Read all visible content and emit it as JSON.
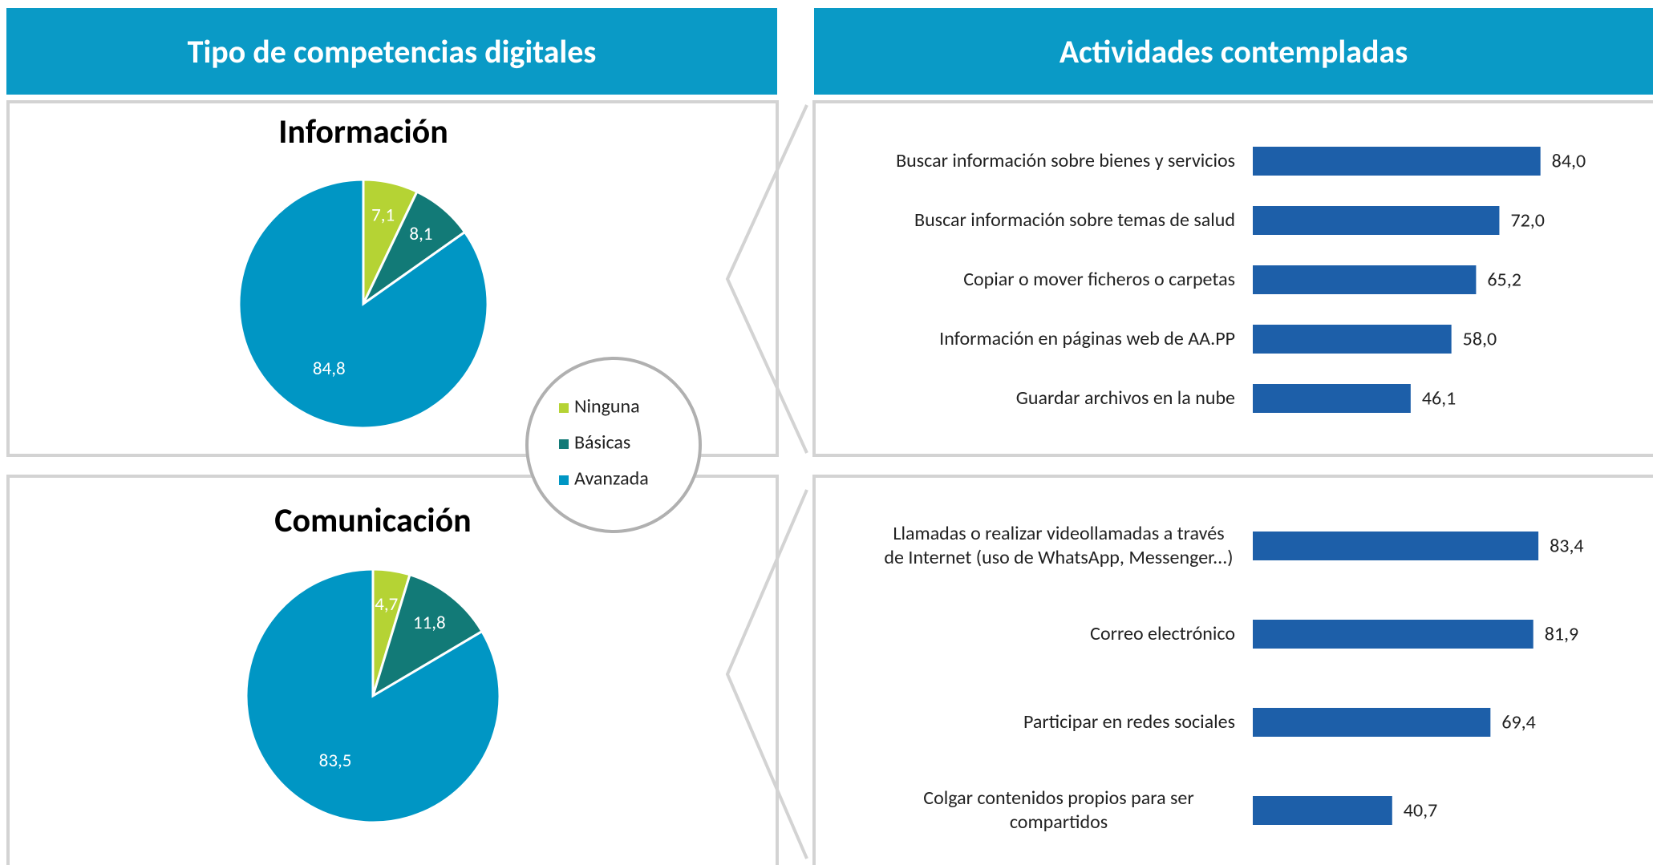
{
  "headers": [
    "Tipo de competencias digitales",
    "Actividades contempladas"
  ],
  "legend": {
    "categories": [
      "Ninguna",
      "Básicas",
      "Avanzada"
    ],
    "colors": [
      "#b5d334",
      "#127a77",
      "#0096c4"
    ]
  },
  "chart_data": [
    {
      "type": "pie",
      "title": "Información",
      "values": [
        7.1,
        8.1,
        84.8
      ],
      "value_labels": [
        "7,1",
        "8,1",
        "84,8"
      ]
    },
    {
      "type": "pie",
      "title": "Comunicación",
      "values": [
        4.7,
        11.8,
        83.5
      ],
      "value_labels": [
        "4,7",
        "11,8",
        "83,5"
      ]
    },
    {
      "type": "bar",
      "orientation": "horizontal",
      "color": "#1d5fa9",
      "xlim": [
        0,
        100
      ],
      "categories": [
        "Buscar información sobre bienes y servicios",
        "Buscar información sobre temas de salud",
        "Copiar o mover ficheros o carpetas",
        "Información en páginas web de AA.PP",
        "Guardar archivos en la nube"
      ],
      "values": [
        84.0,
        72.0,
        65.2,
        58.0,
        46.1
      ],
      "value_labels": [
        "84,0",
        "72,0",
        "65,2",
        "58,0",
        "46,1"
      ]
    },
    {
      "type": "bar",
      "orientation": "horizontal",
      "color": "#1d5fa9",
      "xlim": [
        0,
        100
      ],
      "categories": [
        "Llamadas o realizar videollamadas a través de Internet (uso de WhatsApp, Messenger...)",
        "Correo electrónico",
        "Participar en redes sociales",
        "Colgar contenidos propios para ser compartidos"
      ],
      "values": [
        83.4,
        81.9,
        69.4,
        40.7
      ],
      "value_labels": [
        "83,4",
        "81,9",
        "69,4",
        "40,7"
      ]
    }
  ]
}
